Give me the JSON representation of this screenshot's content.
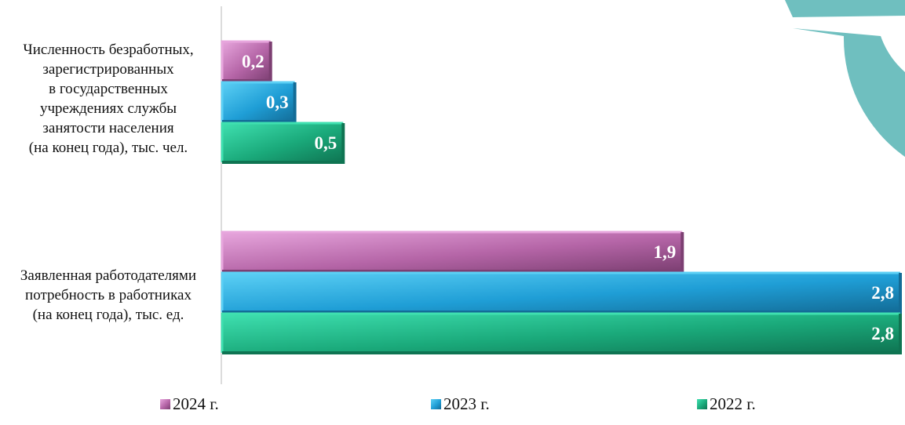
{
  "chart_data": {
    "type": "bar",
    "orientation": "horizontal",
    "categories": [
      "Численность безработных,\nзарегистрированных\nв государственных\nучреждениях службы\nзанятости населения\n(на конец года), тыс. чел.",
      "Заявленная работодателями\nпотребность в работниках\n(на конец года), тыс. ед."
    ],
    "series": [
      {
        "name": "2024 г.",
        "values": [
          0.2,
          1.9
        ],
        "labels": [
          "0,2",
          "1,9"
        ],
        "color": "#b565a7",
        "light": "#e7a6dd",
        "dark": "#7c3f72"
      },
      {
        "name": "2023 г.",
        "values": [
          0.3,
          2.8
        ],
        "labels": [
          "0,3",
          "2,8"
        ],
        "color": "#1f9ed6",
        "light": "#5cd0f5",
        "dark": "#136c97"
      },
      {
        "name": "2022 г.",
        "values": [
          0.5,
          2.8
        ],
        "labels": [
          "0,5",
          "2,8"
        ],
        "color": "#1aa97a",
        "light": "#3fe0b0",
        "dark": "#0f7452"
      }
    ],
    "xlim": [
      0,
      2.8
    ],
    "grid": false,
    "legend_position": "bottom"
  },
  "decoration": {
    "gear_color": "#6fbfbf",
    "axis_color": "#d0d0d0"
  }
}
